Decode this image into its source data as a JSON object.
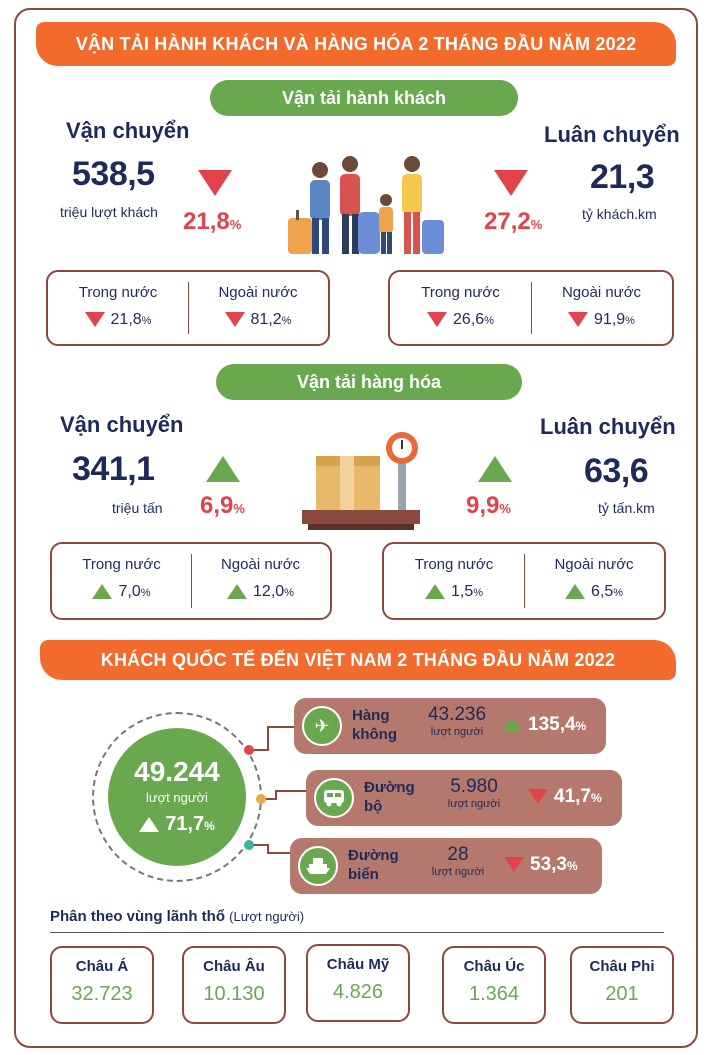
{
  "title_banner": "VẬN TẢI HÀNH KHÁCH VÀ HÀNG HÓA  2 THÁNG ĐẦU NĂM 2022",
  "passenger": {
    "section": "Vận tải hành khách",
    "transport": {
      "label": "Vận chuyển",
      "value": "538,5",
      "unit": "triệu lượt khách",
      "change": "21,8",
      "pct": "%",
      "direction": "down"
    },
    "rotation": {
      "label": "Luân chuyển",
      "value": "21,3",
      "unit": "tỷ khách.km",
      "change": "27,2",
      "pct": "%",
      "direction": "down"
    },
    "transport_split": {
      "domestic_label": "Trong nước",
      "domestic": "21,8",
      "foreign_label": "Ngoài  nước",
      "foreign": "81,2"
    },
    "rotation_split": {
      "domestic_label": "Trong nước",
      "domestic": "26,6",
      "foreign_label": "Ngoài  nước",
      "foreign": "91,9"
    }
  },
  "cargo": {
    "section": "Vận tải hàng hóa",
    "transport": {
      "label": "Vận chuyển",
      "value": "341,1",
      "unit": "triệu tấn",
      "change": "6,9",
      "pct": "%",
      "direction": "up"
    },
    "rotation": {
      "label": "Luân chuyển",
      "value": "63,6",
      "unit": "tỷ tấn.km",
      "change": "9,9",
      "pct": "%",
      "direction": "up"
    },
    "transport_split": {
      "domestic_label": "Trong nước",
      "domestic": "7,0",
      "foreign_label": "Ngoài  nước",
      "foreign": "12,0"
    },
    "rotation_split": {
      "domestic_label": "Trong nước",
      "domestic": "1,5",
      "foreign_label": "Ngoài  nước",
      "foreign": "6,5"
    }
  },
  "intl_banner": "KHÁCH QUỐC TẾ ĐẾN VIỆT NAM 2 THÁNG ĐẦU NĂM 2022",
  "intl_total": {
    "value": "49.244",
    "unit": "lượt người",
    "change": "71,7",
    "pct": "%",
    "direction": "up"
  },
  "routes": [
    {
      "name_1": "Hàng",
      "name_2": "không",
      "value": "43.236",
      "unit": "lượt người",
      "change": "135,4",
      "direction": "up",
      "icon": "airplane-icon"
    },
    {
      "name_1": "Đường",
      "name_2": "bộ",
      "value": "5.980",
      "unit": "lượt người",
      "change": "41,7",
      "direction": "down",
      "icon": "bus-icon"
    },
    {
      "name_1": "Đường",
      "name_2": "biển",
      "value": "28",
      "unit": "lượt người",
      "change": "53,3",
      "direction": "down",
      "icon": "ship-icon"
    }
  ],
  "pct_sign": "%",
  "regions_title": "Phân theo vùng lãnh thổ",
  "regions_unit": "(Lượt người)",
  "regions": [
    {
      "name": "Châu Á",
      "value": "32.723"
    },
    {
      "name": "Châu Âu",
      "value": "10.130"
    },
    {
      "name": "Châu Mỹ",
      "value": "4.826"
    },
    {
      "name": "Châu Úc",
      "value": "1.364"
    },
    {
      "name": "Châu Phi",
      "value": "201"
    }
  ],
  "colors": {
    "orange": "#f26a2c",
    "green": "#6aa84f",
    "red": "#e2434b",
    "navy": "#1e2a5a",
    "brown": "#8a4a40",
    "route_bg": "#b5786c"
  }
}
